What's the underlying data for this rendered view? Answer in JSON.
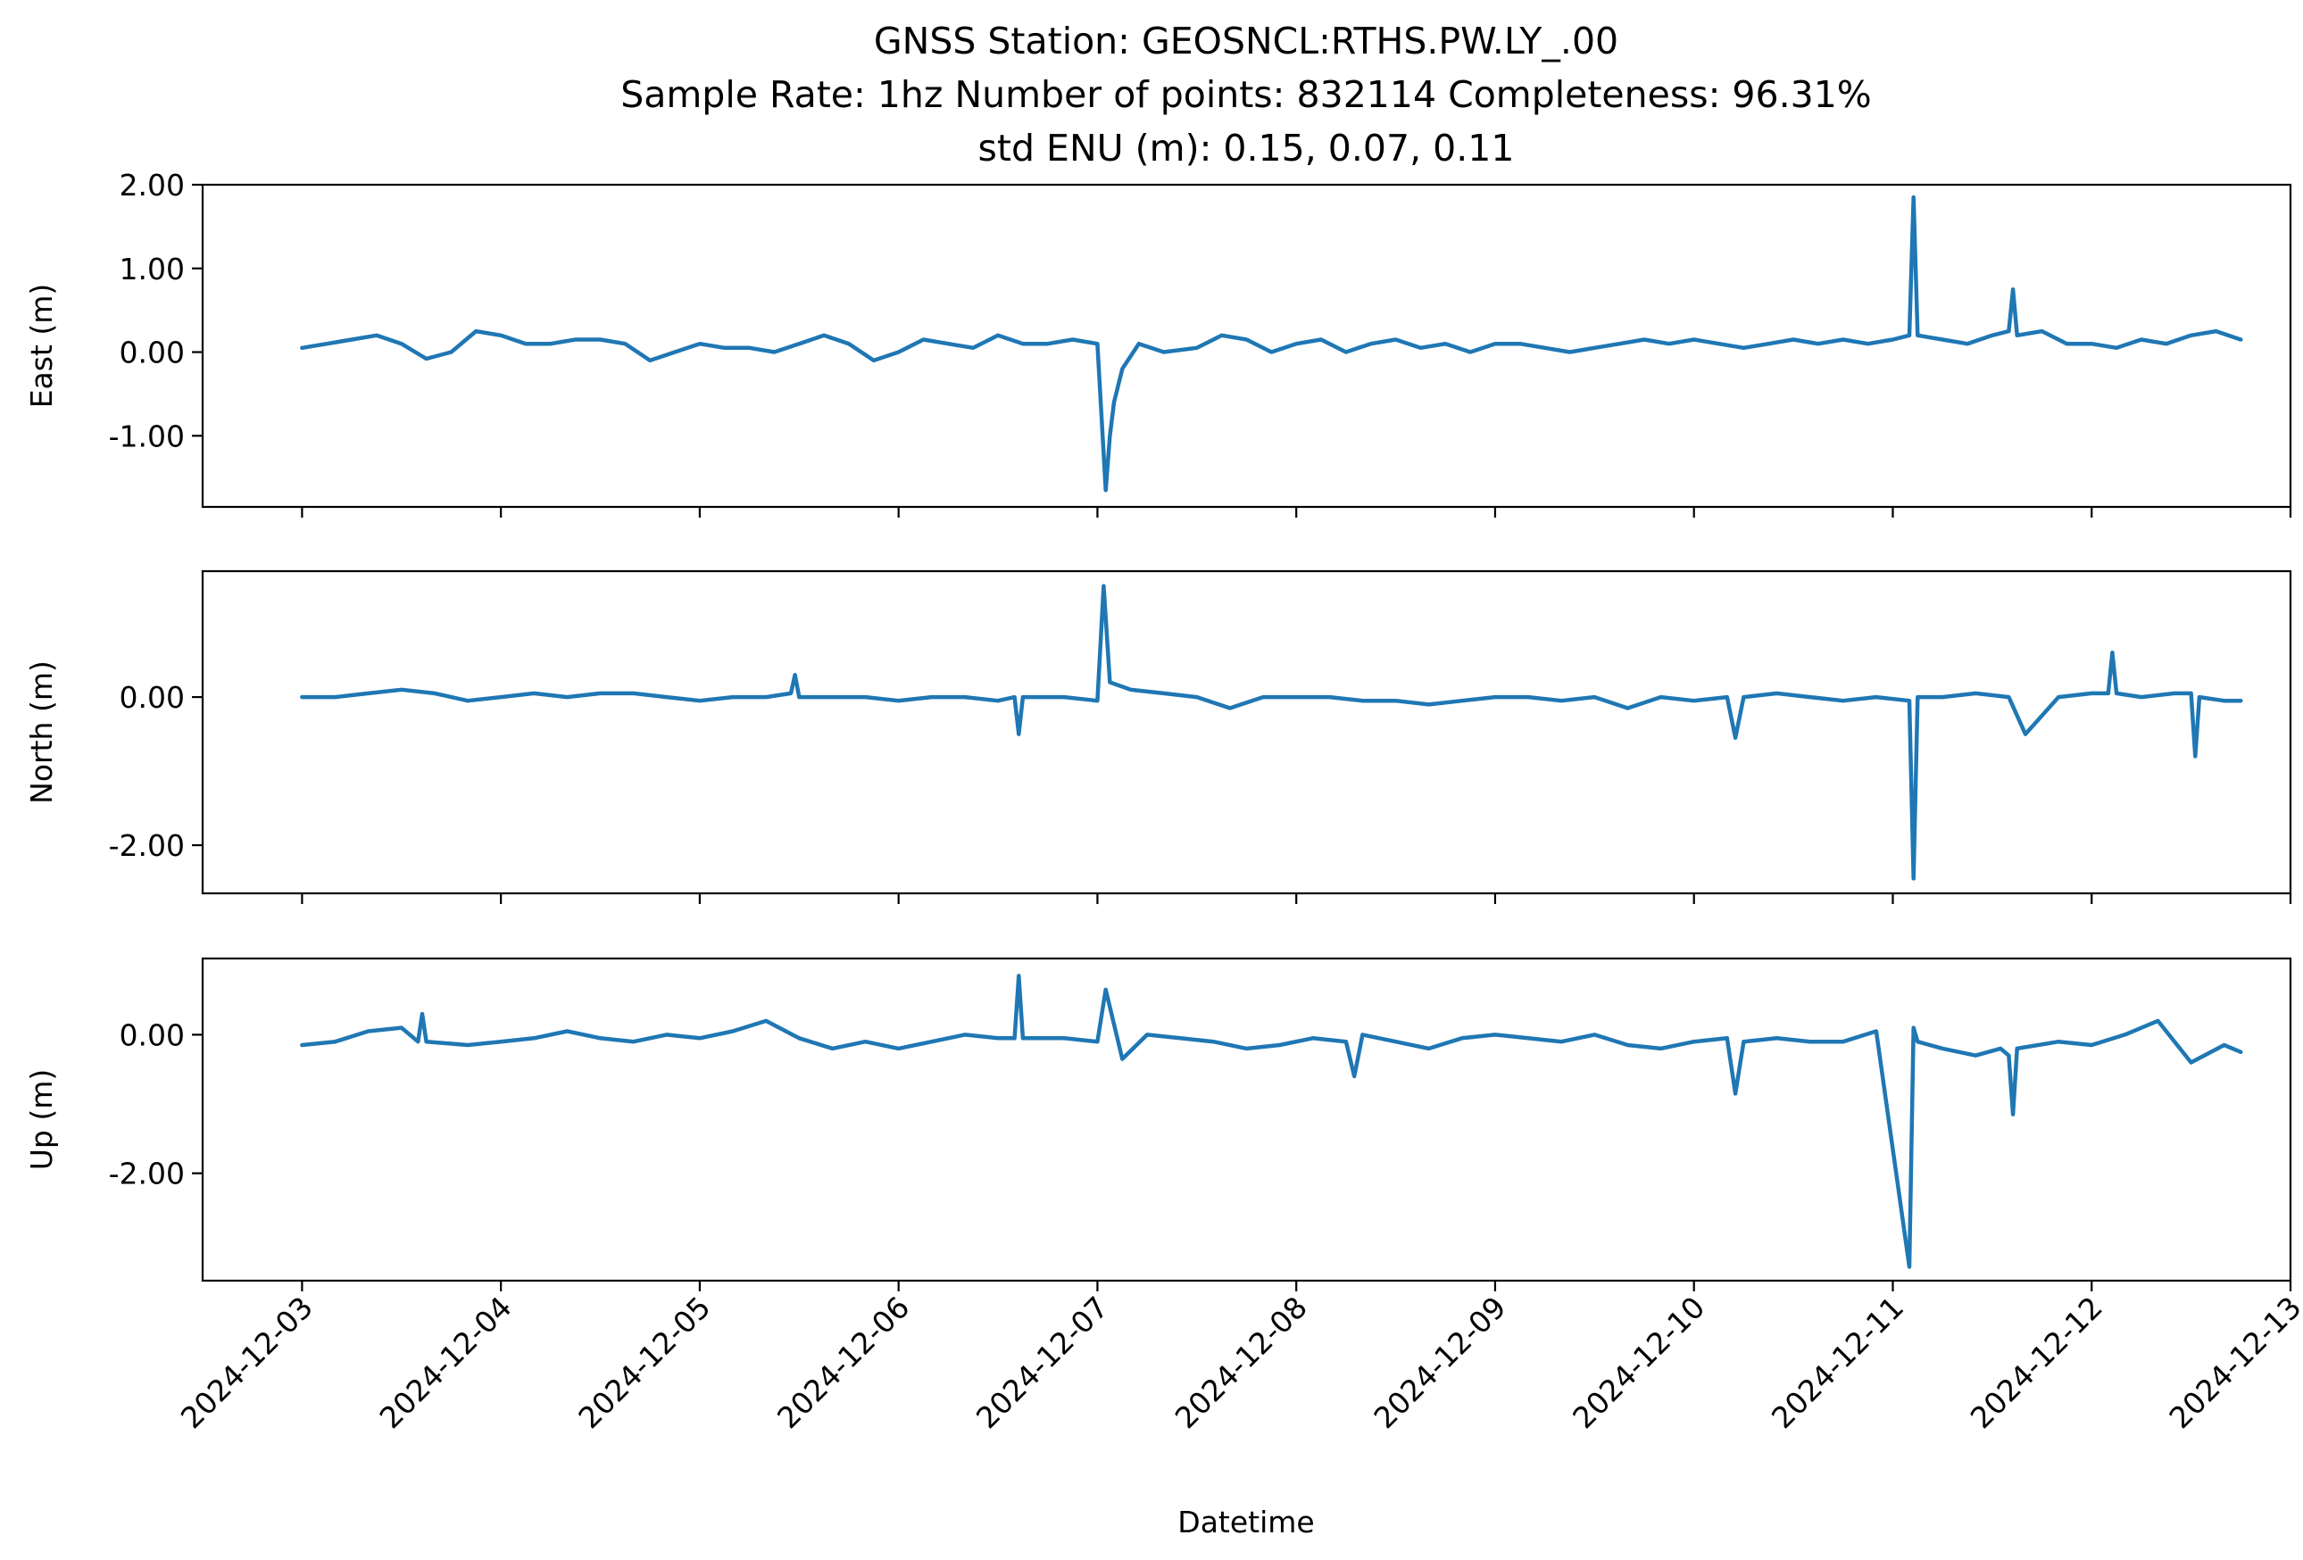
{
  "title_lines": [
    "GNSS Station: GEOSNCL:RTHS.PW.LY_.00",
    "Sample Rate: 1hz   Number of points: 832114    Completeness:  96.31%",
    "std ENU (m):  0.15, 0.07, 0.11"
  ],
  "colors": {
    "series": "#1f77b4",
    "axes": "#000000",
    "background": "#ffffff"
  },
  "xlabel": "Datetime",
  "x_tick_labels": [
    "2024-12-03",
    "2024-12-04",
    "2024-12-05",
    "2024-12-06",
    "2024-12-07",
    "2024-12-08",
    "2024-12-09",
    "2024-12-10",
    "2024-12-11",
    "2024-12-12",
    "2024-12-13"
  ],
  "chart_data": [
    {
      "type": "line",
      "ylabel": "East (m)",
      "ylim": [
        -1.85,
        2.0
      ],
      "yticks": [
        2.0,
        1.0,
        0.0,
        -1.0
      ],
      "ytick_labels": [
        "2.00",
        "1.00",
        "0.00",
        "-1.00"
      ],
      "xlim": [
        "2024-12-02T12:00",
        "2024-12-13T00:00"
      ],
      "grid": false,
      "x": [
        "2024-12-03T00:00",
        "2024-12-03T03:00",
        "2024-12-03T06:00",
        "2024-12-03T09:00",
        "2024-12-03T12:00",
        "2024-12-03T15:00",
        "2024-12-03T18:00",
        "2024-12-03T21:00",
        "2024-12-04T00:00",
        "2024-12-04T03:00",
        "2024-12-04T06:00",
        "2024-12-04T09:00",
        "2024-12-04T12:00",
        "2024-12-04T15:00",
        "2024-12-04T18:00",
        "2024-12-04T21:00",
        "2024-12-05T00:00",
        "2024-12-05T03:00",
        "2024-12-05T06:00",
        "2024-12-05T09:00",
        "2024-12-05T12:00",
        "2024-12-05T15:00",
        "2024-12-05T18:00",
        "2024-12-05T21:00",
        "2024-12-06T00:00",
        "2024-12-06T03:00",
        "2024-12-06T06:00",
        "2024-12-06T09:00",
        "2024-12-06T12:00",
        "2024-12-06T15:00",
        "2024-12-06T18:00",
        "2024-12-06T21:00",
        "2024-12-07T00:00",
        "2024-12-07T01:00",
        "2024-12-07T01:30",
        "2024-12-07T02:00",
        "2024-12-07T03:00",
        "2024-12-07T05:00",
        "2024-12-07T08:00",
        "2024-12-07T12:00",
        "2024-12-07T15:00",
        "2024-12-07T18:00",
        "2024-12-07T21:00",
        "2024-12-08T00:00",
        "2024-12-08T03:00",
        "2024-12-08T06:00",
        "2024-12-08T09:00",
        "2024-12-08T12:00",
        "2024-12-08T15:00",
        "2024-12-08T18:00",
        "2024-12-08T21:00",
        "2024-12-09T00:00",
        "2024-12-09T03:00",
        "2024-12-09T06:00",
        "2024-12-09T09:00",
        "2024-12-09T12:00",
        "2024-12-09T15:00",
        "2024-12-09T18:00",
        "2024-12-09T21:00",
        "2024-12-10T00:00",
        "2024-12-10T03:00",
        "2024-12-10T06:00",
        "2024-12-10T09:00",
        "2024-12-10T12:00",
        "2024-12-10T15:00",
        "2024-12-10T18:00",
        "2024-12-10T21:00",
        "2024-12-11T00:00",
        "2024-12-11T02:00",
        "2024-12-11T02:30",
        "2024-12-11T03:00",
        "2024-12-11T06:00",
        "2024-12-11T09:00",
        "2024-12-11T12:00",
        "2024-12-11T14:00",
        "2024-12-11T14:30",
        "2024-12-11T15:00",
        "2024-12-11T18:00",
        "2024-12-11T21:00",
        "2024-12-12T00:00",
        "2024-12-12T03:00",
        "2024-12-12T06:00",
        "2024-12-12T09:00",
        "2024-12-12T12:00",
        "2024-12-12T15:00",
        "2024-12-12T18:00"
      ],
      "y": [
        0.05,
        0.1,
        0.15,
        0.2,
        0.1,
        -0.08,
        0.0,
        0.25,
        0.2,
        0.1,
        0.1,
        0.15,
        0.15,
        0.1,
        -0.1,
        0.0,
        0.1,
        0.05,
        0.05,
        0.0,
        0.1,
        0.2,
        0.1,
        -0.1,
        0.0,
        0.15,
        0.1,
        0.05,
        0.2,
        0.1,
        0.1,
        0.15,
        0.1,
        -1.65,
        -1.0,
        -0.6,
        -0.2,
        0.1,
        0.0,
        0.05,
        0.2,
        0.15,
        0.0,
        0.1,
        0.15,
        0.0,
        0.1,
        0.15,
        0.05,
        0.1,
        0.0,
        0.1,
        0.1,
        0.05,
        0.0,
        0.05,
        0.1,
        0.15,
        0.1,
        0.15,
        0.1,
        0.05,
        0.1,
        0.15,
        0.1,
        0.15,
        0.1,
        0.15,
        0.2,
        1.85,
        0.2,
        0.15,
        0.1,
        0.2,
        0.25,
        0.75,
        0.2,
        0.25,
        0.1,
        0.1,
        0.05,
        0.15,
        0.1,
        0.2,
        0.25,
        0.15
      ]
    },
    {
      "type": "line",
      "ylabel": "North (m)",
      "ylim": [
        -2.65,
        1.7
      ],
      "yticks": [
        0.0,
        -2.0
      ],
      "ytick_labels": [
        "0.00",
        "-2.00"
      ],
      "xlim": [
        "2024-12-02T12:00",
        "2024-12-13T00:00"
      ],
      "grid": false,
      "x": [
        "2024-12-03T00:00",
        "2024-12-03T04:00",
        "2024-12-03T08:00",
        "2024-12-03T12:00",
        "2024-12-03T16:00",
        "2024-12-03T20:00",
        "2024-12-04T00:00",
        "2024-12-04T04:00",
        "2024-12-04T08:00",
        "2024-12-04T12:00",
        "2024-12-04T16:00",
        "2024-12-04T20:00",
        "2024-12-05T00:00",
        "2024-12-05T04:00",
        "2024-12-05T08:00",
        "2024-12-05T11:00",
        "2024-12-05T11:30",
        "2024-12-05T12:00",
        "2024-12-05T16:00",
        "2024-12-05T20:00",
        "2024-12-06T00:00",
        "2024-12-06T04:00",
        "2024-12-06T08:00",
        "2024-12-06T12:00",
        "2024-12-06T14:00",
        "2024-12-06T14:30",
        "2024-12-06T15:00",
        "2024-12-06T20:00",
        "2024-12-07T00:00",
        "2024-12-07T00:45",
        "2024-12-07T01:30",
        "2024-12-07T04:00",
        "2024-12-07T08:00",
        "2024-12-07T12:00",
        "2024-12-07T16:00",
        "2024-12-07T20:00",
        "2024-12-08T00:00",
        "2024-12-08T04:00",
        "2024-12-08T08:00",
        "2024-12-08T12:00",
        "2024-12-08T16:00",
        "2024-12-08T20:00",
        "2024-12-09T00:00",
        "2024-12-09T04:00",
        "2024-12-09T08:00",
        "2024-12-09T12:00",
        "2024-12-09T16:00",
        "2024-12-09T20:00",
        "2024-12-10T00:00",
        "2024-12-10T04:00",
        "2024-12-10T05:00",
        "2024-12-10T06:00",
        "2024-12-10T10:00",
        "2024-12-10T14:00",
        "2024-12-10T18:00",
        "2024-12-10T22:00",
        "2024-12-11T02:00",
        "2024-12-11T02:30",
        "2024-12-11T03:00",
        "2024-12-11T06:00",
        "2024-12-11T10:00",
        "2024-12-11T14:00",
        "2024-12-11T16:00",
        "2024-12-11T20:00",
        "2024-12-12T00:00",
        "2024-12-12T02:00",
        "2024-12-12T02:30",
        "2024-12-12T03:00",
        "2024-12-12T06:00",
        "2024-12-12T10:00",
        "2024-12-12T12:00",
        "2024-12-12T12:30",
        "2024-12-12T13:00",
        "2024-12-12T16:00",
        "2024-12-12T18:00"
      ],
      "y": [
        0.0,
        0.0,
        0.05,
        0.1,
        0.05,
        -0.05,
        0.0,
        0.05,
        0.0,
        0.05,
        0.05,
        0.0,
        -0.05,
        0.0,
        0.0,
        0.05,
        0.3,
        0.0,
        0.0,
        0.0,
        -0.05,
        0.0,
        0.0,
        -0.05,
        0.0,
        -0.5,
        0.0,
        0.0,
        -0.05,
        1.5,
        0.2,
        0.1,
        0.05,
        0.0,
        -0.15,
        0.0,
        0.0,
        0.0,
        -0.05,
        -0.05,
        -0.1,
        -0.05,
        0.0,
        0.0,
        -0.05,
        0.0,
        -0.15,
        0.0,
        -0.05,
        0.0,
        -0.55,
        0.0,
        0.05,
        0.0,
        -0.05,
        0.0,
        -0.05,
        -2.45,
        0.0,
        0.0,
        0.05,
        0.0,
        -0.5,
        0.0,
        0.05,
        0.05,
        0.6,
        0.05,
        0.0,
        0.05,
        0.05,
        -0.8,
        0.0,
        -0.05,
        -0.05
      ]
    },
    {
      "type": "line",
      "ylabel": "Up (m)",
      "ylim": [
        -3.55,
        1.1
      ],
      "yticks": [
        0.0,
        -2.0
      ],
      "ytick_labels": [
        "0.00",
        "-2.00"
      ],
      "xlim": [
        "2024-12-02T12:00",
        "2024-12-13T00:00"
      ],
      "grid": false,
      "x": [
        "2024-12-03T00:00",
        "2024-12-03T04:00",
        "2024-12-03T08:00",
        "2024-12-03T12:00",
        "2024-12-03T14:00",
        "2024-12-03T14:30",
        "2024-12-03T15:00",
        "2024-12-03T20:00",
        "2024-12-04T00:00",
        "2024-12-04T04:00",
        "2024-12-04T08:00",
        "2024-12-04T12:00",
        "2024-12-04T16:00",
        "2024-12-04T20:00",
        "2024-12-05T00:00",
        "2024-12-05T04:00",
        "2024-12-05T08:00",
        "2024-12-05T12:00",
        "2024-12-05T16:00",
        "2024-12-05T20:00",
        "2024-12-06T00:00",
        "2024-12-06T04:00",
        "2024-12-06T08:00",
        "2024-12-06T12:00",
        "2024-12-06T14:00",
        "2024-12-06T14:30",
        "2024-12-06T15:00",
        "2024-12-06T20:00",
        "2024-12-07T00:00",
        "2024-12-07T01:00",
        "2024-12-07T03:00",
        "2024-12-07T06:00",
        "2024-12-07T10:00",
        "2024-12-07T14:00",
        "2024-12-07T18:00",
        "2024-12-07T22:00",
        "2024-12-08T02:00",
        "2024-12-08T06:00",
        "2024-12-08T07:00",
        "2024-12-08T08:00",
        "2024-12-08T12:00",
        "2024-12-08T16:00",
        "2024-12-08T20:00",
        "2024-12-09T00:00",
        "2024-12-09T04:00",
        "2024-12-09T08:00",
        "2024-12-09T12:00",
        "2024-12-09T16:00",
        "2024-12-09T20:00",
        "2024-12-10T00:00",
        "2024-12-10T04:00",
        "2024-12-10T05:00",
        "2024-12-10T06:00",
        "2024-12-10T10:00",
        "2024-12-10T14:00",
        "2024-12-10T18:00",
        "2024-12-10T22:00",
        "2024-12-11T02:00",
        "2024-12-11T02:30",
        "2024-12-11T03:00",
        "2024-12-11T06:00",
        "2024-12-11T10:00",
        "2024-12-11T13:00",
        "2024-12-11T14:00",
        "2024-12-11T14:30",
        "2024-12-11T15:00",
        "2024-12-11T20:00",
        "2024-12-12T00:00",
        "2024-12-12T04:00",
        "2024-12-12T08:00",
        "2024-12-12T12:00",
        "2024-12-12T16:00",
        "2024-12-12T18:00"
      ],
      "y": [
        -0.15,
        -0.1,
        0.05,
        0.1,
        -0.1,
        0.3,
        -0.1,
        -0.15,
        -0.1,
        -0.05,
        0.05,
        -0.05,
        -0.1,
        0.0,
        -0.05,
        0.05,
        0.2,
        -0.05,
        -0.2,
        -0.1,
        -0.2,
        -0.1,
        0.0,
        -0.05,
        -0.05,
        0.85,
        -0.05,
        -0.05,
        -0.1,
        0.65,
        -0.35,
        0.0,
        -0.05,
        -0.1,
        -0.2,
        -0.15,
        -0.05,
        -0.1,
        -0.6,
        0.0,
        -0.1,
        -0.2,
        -0.05,
        0.0,
        -0.05,
        -0.1,
        0.0,
        -0.15,
        -0.2,
        -0.1,
        -0.05,
        -0.85,
        -0.1,
        -0.05,
        -0.1,
        -0.1,
        0.05,
        -3.35,
        0.1,
        -0.1,
        -0.2,
        -0.3,
        -0.2,
        -0.3,
        -1.15,
        -0.2,
        -0.1,
        -0.15,
        0.0,
        0.2,
        -0.4,
        -0.15,
        -0.25
      ]
    }
  ]
}
